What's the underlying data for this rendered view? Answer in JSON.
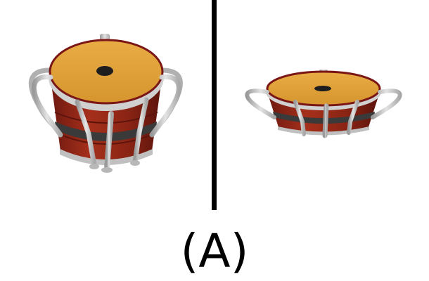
{
  "caption": "(A)",
  "colors": {
    "drum_head": "#E2A23A",
    "drum_rim": "#7A1616",
    "drum_body": "#8E2416",
    "drum_band": "#3A3A3A",
    "hardware": "#C8C8C8",
    "divider": "#000000"
  },
  "views": [
    "drum-side-view",
    "drum-flattened-view"
  ]
}
